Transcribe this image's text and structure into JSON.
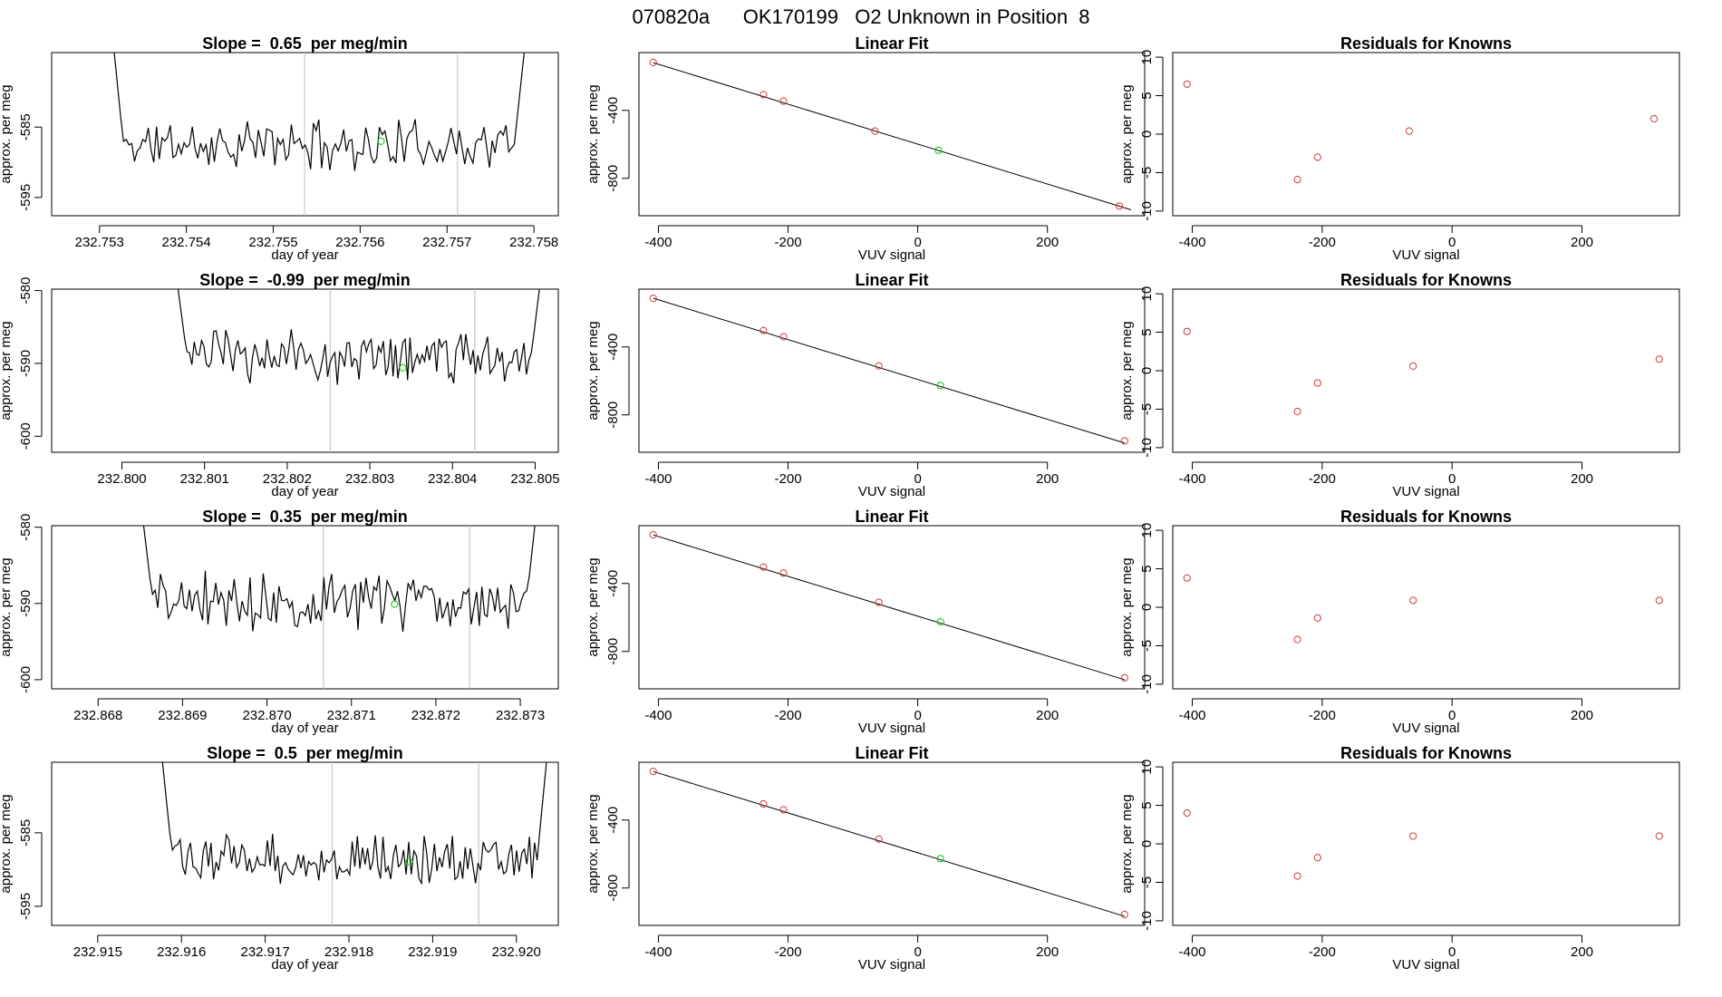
{
  "figure": {
    "suptitle": "070820a      OK170199   O2 Unknown in Position  8"
  },
  "colors": {
    "line": "#000000",
    "known_marker": "#cd3b3b",
    "unknown_marker": "#00cc00",
    "vline": "#bebebe",
    "axis": "#000000"
  },
  "chart_data": [
    {
      "type": "line",
      "row": 1,
      "title": "Slope =  0.65  per meg/min",
      "xlabel": "day of year",
      "ylabel": "approx. per meg",
      "xlim": [
        232.75245,
        232.75828
      ],
      "ylim": [
        -597.6,
        -574.4
      ],
      "xticks": [
        "232.753",
        "232.754",
        "232.755",
        "232.756",
        "232.757",
        "232.758"
      ],
      "yticks": [
        -595,
        -585
      ],
      "vlines": [
        232.75536,
        232.75712
      ],
      "unknown_point": [
        232.75624,
        -587.0
      ],
      "series_start": 232.75315,
      "series_end": 232.7579,
      "edge_start": -572,
      "edge_end": -573,
      "mean": -587.5,
      "amp": 2.8,
      "seed": 11
    },
    {
      "type": "scatter",
      "row": 1,
      "title": "Linear Fit",
      "xlabel": "VUV signal",
      "ylabel": "approx. per meg",
      "xlim": [
        -430,
        350
      ],
      "ylim": [
        -1020,
        -60
      ],
      "xticks": [
        -400,
        -200,
        0,
        200
      ],
      "yticks": [
        -400,
        -800
      ],
      "knowns": [
        [
          -408,
          -118
        ],
        [
          -238,
          -308
        ],
        [
          -207,
          -346
        ],
        [
          -66,
          -522
        ],
        [
          311,
          -963
        ]
      ],
      "unknown": [
        [
          32,
          -635
        ]
      ],
      "fit_x": [
        -408,
        329
      ],
      "fit_slope": 1.1752,
      "fit_intercept": -598.63
    },
    {
      "type": "scatter",
      "row": 1,
      "title": "Residuals for Knowns",
      "xlabel": "VUV signal",
      "ylabel": "approx. per meg",
      "xlim": [
        -430,
        350
      ],
      "ylim": [
        -10.6,
        10.6
      ],
      "xticks": [
        -400,
        -200,
        0,
        200
      ],
      "yticks": [
        -10,
        -5,
        0,
        5,
        10
      ],
      "points": [
        [
          -408,
          6.5
        ],
        [
          -238,
          -5.9
        ],
        [
          -207,
          -3.0
        ],
        [
          -66,
          0.4
        ],
        [
          311,
          2.0
        ]
      ]
    },
    {
      "type": "line",
      "row": 2,
      "title": "Slope =  -0.99  per meg/min",
      "xlabel": "day of year",
      "ylabel": "approx. per meg",
      "xlim": [
        232.79915,
        232.80528
      ],
      "ylim": [
        -602.2,
        -579.8
      ],
      "xticks": [
        "232.800",
        "232.801",
        "232.802",
        "232.803",
        "232.804",
        "232.805"
      ],
      "yticks": [
        -600,
        -590,
        -580
      ],
      "vlines": [
        232.80252,
        232.80427
      ],
      "unknown_point": [
        232.8034,
        -590.6
      ],
      "series_start": 232.80067,
      "series_end": 232.80507,
      "edge_start": -579,
      "edge_end": -578,
      "mean": -589.0,
      "amp": 3.0,
      "seed": 23
    },
    {
      "type": "scatter",
      "row": 2,
      "title": "Linear Fit",
      "xlabel": "VUV signal",
      "ylabel": "approx. per meg",
      "xlim": [
        -430,
        350
      ],
      "ylim": [
        -1020,
        -60
      ],
      "xticks": [
        -400,
        -200,
        0,
        200
      ],
      "yticks": [
        -400,
        -800
      ],
      "knowns": [
        [
          -408,
          -114
        ],
        [
          -238,
          -304
        ],
        [
          -207,
          -340
        ],
        [
          -60,
          -512
        ],
        [
          319,
          -953
        ]
      ],
      "unknown": [
        [
          35,
          -627
        ]
      ],
      "fit_x": [
        -408,
        319
      ],
      "fit_slope": 1.1719,
      "fit_intercept": -591.68
    },
    {
      "type": "scatter",
      "row": 2,
      "title": "Residuals for Knowns",
      "xlabel": "VUV signal",
      "ylabel": "approx. per meg",
      "xlim": [
        -430,
        350
      ],
      "ylim": [
        -10.6,
        10.6
      ],
      "xticks": [
        -400,
        -200,
        0,
        200
      ],
      "yticks": [
        -10,
        -5,
        0,
        5,
        10
      ],
      "points": [
        [
          -408,
          5.1
        ],
        [
          -238,
          -5.3
        ],
        [
          -207,
          -1.6
        ],
        [
          -60,
          0.6
        ],
        [
          319,
          1.5
        ]
      ]
    },
    {
      "type": "line",
      "row": 3,
      "title": "Slope =  0.35  per meg/min",
      "xlabel": "day of year",
      "ylabel": "approx. per meg",
      "xlim": [
        232.86745,
        232.87345
      ],
      "ylim": [
        -601.2,
        -579.8
      ],
      "xticks": [
        "232.868",
        "232.869",
        "232.870",
        "232.871",
        "232.872",
        "232.873"
      ],
      "yticks": [
        -600,
        -590,
        -580
      ],
      "vlines": [
        232.87067,
        232.8724
      ],
      "unknown_point": [
        232.87151,
        -590.1
      ],
      "series_start": 232.86852,
      "series_end": 232.8732,
      "edge_start": -578,
      "edge_end": -577,
      "mean": -589.6,
      "amp": 2.9,
      "seed": 37
    },
    {
      "type": "scatter",
      "row": 3,
      "title": "Linear Fit",
      "xlabel": "VUV signal",
      "ylabel": "approx. per meg",
      "xlim": [
        -430,
        350
      ],
      "ylim": [
        -1020,
        -60
      ],
      "xticks": [
        -400,
        -200,
        0,
        200
      ],
      "yticks": [
        -400,
        -800
      ],
      "knowns": [
        [
          -408,
          -114
        ],
        [
          -238,
          -304
        ],
        [
          -207,
          -339
        ],
        [
          -60,
          -511
        ],
        [
          319,
          -955
        ]
      ],
      "unknown": [
        [
          35,
          -626
        ]
      ],
      "fit_x": [
        -408,
        319
      ],
      "fit_slope": 1.1719,
      "fit_intercept": -592.55
    },
    {
      "type": "scatter",
      "row": 3,
      "title": "Residuals for Knowns",
      "xlabel": "VUV signal",
      "ylabel": "approx. per meg",
      "xlim": [
        -430,
        350
      ],
      "ylim": [
        -10.6,
        10.6
      ],
      "xticks": [
        -400,
        -200,
        0,
        200
      ],
      "yticks": [
        -10,
        -5,
        0,
        5,
        10
      ],
      "points": [
        [
          -408,
          3.8
        ],
        [
          -238,
          -4.2
        ],
        [
          -207,
          -1.4
        ],
        [
          -60,
          0.9
        ],
        [
          319,
          0.9
        ]
      ]
    },
    {
      "type": "line",
      "row": 4,
      "title": "Slope =  0.5  per meg/min",
      "xlabel": "day of year",
      "ylabel": "approx. per meg",
      "xlim": [
        232.91445,
        232.9205
      ],
      "ylim": [
        -597.6,
        -575.4
      ],
      "xticks": [
        "232.915",
        "232.916",
        "232.917",
        "232.918",
        "232.919",
        "232.920"
      ],
      "yticks": [
        -595,
        -585
      ],
      "vlines": [
        232.9178,
        232.91955
      ],
      "unknown_point": [
        232.91872,
        -588.9
      ],
      "series_start": 232.91577,
      "series_end": 232.92037,
      "edge_start": -575,
      "edge_end": -574,
      "mean": -588.6,
      "amp": 2.6,
      "seed": 53
    },
    {
      "type": "scatter",
      "row": 4,
      "title": "Linear Fit",
      "xlabel": "VUV signal",
      "ylabel": "approx. per meg",
      "xlim": [
        -430,
        350
      ],
      "ylim": [
        -1020,
        -60
      ],
      "xticks": [
        -400,
        -200,
        0,
        200
      ],
      "yticks": [
        -400,
        -800
      ],
      "knowns": [
        [
          -408,
          -114
        ],
        [
          -238,
          -305
        ],
        [
          -207,
          -340
        ],
        [
          -60,
          -512
        ],
        [
          319,
          -956
        ]
      ],
      "unknown": [
        [
          35,
          -627
        ]
      ],
      "fit_x": [
        -408,
        319
      ],
      "fit_slope": 1.1719,
      "fit_intercept": -592.55
    },
    {
      "type": "scatter",
      "row": 4,
      "title": "Residuals for Knowns",
      "xlabel": "VUV signal",
      "ylabel": "approx. per meg",
      "xlim": [
        -430,
        350
      ],
      "ylim": [
        -10.6,
        10.6
      ],
      "xticks": [
        -400,
        -200,
        0,
        200
      ],
      "yticks": [
        -10,
        -5,
        0,
        5,
        10
      ],
      "points": [
        [
          -408,
          4.0
        ],
        [
          -238,
          -4.2
        ],
        [
          -207,
          -1.8
        ],
        [
          -60,
          1.0
        ],
        [
          319,
          1.0
        ]
      ]
    }
  ]
}
